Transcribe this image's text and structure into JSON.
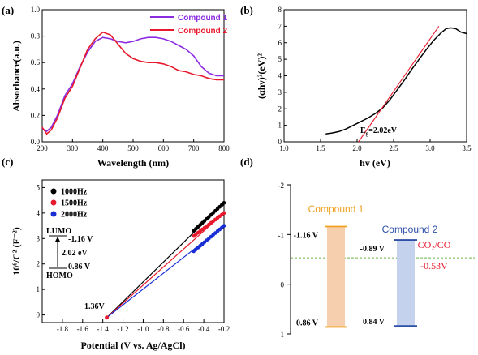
{
  "chart_data": [
    {
      "panel_label": "(a)",
      "type": "line",
      "xlabel": "Wavelength (nm)",
      "ylabel": "Absorbance(a.u.)",
      "xlim": [
        200,
        800
      ],
      "ylim": [
        0,
        1.0
      ],
      "xticks": [
        "200",
        "300",
        "400",
        "500",
        "600",
        "700",
        "800"
      ],
      "yticks": [
        "0.0",
        "0.2",
        "0.4",
        "0.6",
        "0.8",
        "1.0"
      ],
      "legend_position": "top-right",
      "series": [
        {
          "name": "Compound 1",
          "color": "#8b2be2",
          "points": [
            [
              200,
              0.1
            ],
            [
              215,
              0.08
            ],
            [
              230,
              0.11
            ],
            [
              250,
              0.2
            ],
            [
              275,
              0.35
            ],
            [
              300,
              0.44
            ],
            [
              325,
              0.57
            ],
            [
              350,
              0.68
            ],
            [
              375,
              0.76
            ],
            [
              400,
              0.79
            ],
            [
              425,
              0.78
            ],
            [
              450,
              0.76
            ],
            [
              475,
              0.75
            ],
            [
              500,
              0.76
            ],
            [
              525,
              0.78
            ],
            [
              550,
              0.79
            ],
            [
              575,
              0.79
            ],
            [
              600,
              0.78
            ],
            [
              625,
              0.76
            ],
            [
              650,
              0.73
            ],
            [
              675,
              0.7
            ],
            [
              700,
              0.65
            ],
            [
              725,
              0.57
            ],
            [
              750,
              0.52
            ],
            [
              775,
              0.5
            ],
            [
              800,
              0.5
            ]
          ]
        },
        {
          "name": "Compound 2",
          "color": "#e8192c",
          "points": [
            [
              200,
              0.11
            ],
            [
              215,
              0.06
            ],
            [
              230,
              0.09
            ],
            [
              250,
              0.18
            ],
            [
              275,
              0.33
            ],
            [
              300,
              0.42
            ],
            [
              325,
              0.56
            ],
            [
              350,
              0.7
            ],
            [
              375,
              0.78
            ],
            [
              400,
              0.83
            ],
            [
              425,
              0.81
            ],
            [
              450,
              0.74
            ],
            [
              475,
              0.67
            ],
            [
              500,
              0.63
            ],
            [
              525,
              0.61
            ],
            [
              550,
              0.6
            ],
            [
              575,
              0.6
            ],
            [
              600,
              0.59
            ],
            [
              625,
              0.57
            ],
            [
              650,
              0.54
            ],
            [
              675,
              0.53
            ],
            [
              700,
              0.51
            ],
            [
              725,
              0.5
            ],
            [
              750,
              0.48
            ],
            [
              775,
              0.47
            ],
            [
              800,
              0.47
            ]
          ]
        }
      ]
    },
    {
      "panel_label": "(b)",
      "type": "line",
      "xlabel": "hv (eV)",
      "ylabel": "(αhν)²(eV)²",
      "xlim": [
        1.0,
        3.5
      ],
      "ylim": [
        0,
        8
      ],
      "xticks": [
        "1.0",
        "1.5",
        "2.0",
        "2.5",
        "3.0",
        "3.5"
      ],
      "yticks": [
        "0",
        "1",
        "2",
        "3",
        "4",
        "5",
        "6",
        "7",
        "8"
      ],
      "annotation_prefix": "E",
      "annotation_sub": "g",
      "annotation_value": "=2.02eV",
      "series": [
        {
          "name": "",
          "color": "#000000",
          "points": [
            [
              1.57,
              0.48
            ],
            [
              1.65,
              0.53
            ],
            [
              1.75,
              0.62
            ],
            [
              1.85,
              0.78
            ],
            [
              1.95,
              1.0
            ],
            [
              2.05,
              1.22
            ],
            [
              2.15,
              1.45
            ],
            [
              2.25,
              1.72
            ],
            [
              2.35,
              2.05
            ],
            [
              2.45,
              2.55
            ],
            [
              2.55,
              3.15
            ],
            [
              2.65,
              3.75
            ],
            [
              2.75,
              4.4
            ],
            [
              2.85,
              5.0
            ],
            [
              2.95,
              5.6
            ],
            [
              3.05,
              6.15
            ],
            [
              3.15,
              6.6
            ],
            [
              3.22,
              6.85
            ],
            [
              3.28,
              6.9
            ],
            [
              3.35,
              6.85
            ],
            [
              3.42,
              6.65
            ],
            [
              3.5,
              6.55
            ]
          ]
        },
        {
          "name": "",
          "color": "#e8192c",
          "points": [
            [
              2.02,
              0.0
            ],
            [
              3.12,
              7.0
            ]
          ]
        }
      ]
    },
    {
      "panel_label": "(c)",
      "type": "scatter",
      "xlabel": "Potential (V vs. Ag/AgCl)",
      "ylabel": "10⁶/C² (F⁻²)",
      "xlim": [
        -2.0,
        -0.2
      ],
      "ylim": [
        -0.3,
        5.3
      ],
      "xticks": [
        "-1.8",
        "-1.6",
        "-1.4",
        "-1.2",
        "-1.0",
        "-0.8",
        "-0.6",
        "-0.4",
        "-0.2"
      ],
      "yticks": [
        "0",
        "1",
        "2",
        "3",
        "4",
        "5"
      ],
      "legend_position": "top-left",
      "intercept_label": "1.36V",
      "inset": {
        "lumo": "LUMO",
        "lumo_value": "-1.16 V",
        "gap": "2.02 eV",
        "homo": "HOMO",
        "homo_value": "0.86 V"
      },
      "series": [
        {
          "name": "1000Hz",
          "color": "#000000",
          "x_range": [
            -0.5,
            -0.2
          ],
          "fit": [
            [
              -1.36,
              -0.1
            ],
            [
              -0.2,
              4.4
            ]
          ],
          "points_y": [
            3.3,
            4.4
          ]
        },
        {
          "name": "1500Hz",
          "color": "#e8192c",
          "x_range": [
            -0.5,
            -0.2
          ],
          "fit": [
            [
              -1.36,
              -0.1
            ],
            [
              -0.2,
              4.0
            ]
          ],
          "points_y": [
            3.1,
            4.0
          ]
        },
        {
          "name": "2000Hz",
          "color": "#1a2ed6",
          "x_range": [
            -0.5,
            -0.2
          ],
          "fit": [
            [
              -1.36,
              -0.1
            ],
            [
              -0.2,
              3.5
            ]
          ],
          "points_y": [
            2.5,
            3.5
          ]
        }
      ]
    },
    {
      "panel_label": "(d)",
      "type": "diagram",
      "ylim": [
        -2,
        1
      ],
      "yticks": [
        "-2",
        "-1",
        "0",
        "1"
      ],
      "reference_label": "CO₂/CO",
      "reference_value": "-0.53V",
      "reference_y": -0.53,
      "bars": [
        {
          "name": "Compound 1",
          "color": "#f0a020",
          "fill": "#f5cfae",
          "top": -1.16,
          "bottom": 0.86,
          "top_label": "-1.16 V",
          "bottom_label": "0.86 V"
        },
        {
          "name": "Compound 2",
          "color": "#2d4fa8",
          "fill": "#c5d2ee",
          "top": -0.89,
          "bottom": 0.84,
          "top_label": "-0.89 V",
          "bottom_label": "0.84 V"
        }
      ]
    }
  ]
}
